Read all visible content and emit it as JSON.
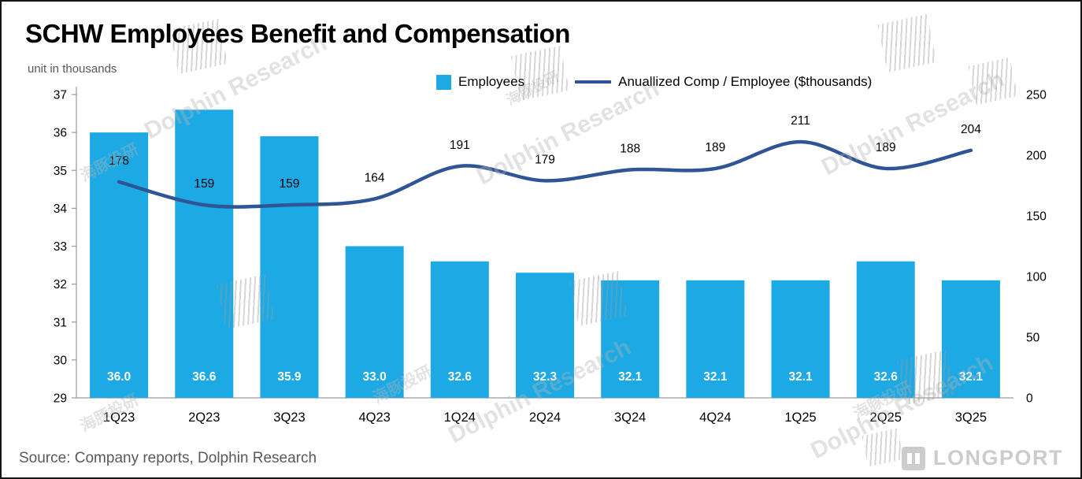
{
  "title": "SCHW Employees Benefit and Compensation",
  "subtitle": "unit in thousands",
  "source": "Source: Company reports, Dolphin Research",
  "logo": {
    "text": "LONGPORT"
  },
  "watermark": {
    "en": "Dolphin Research",
    "zh": "海豚投研"
  },
  "legend": [
    {
      "label": "Employees",
      "type": "bar",
      "color": "#1CA9E4"
    },
    {
      "label": "Anuallized Comp / Employee ($thousands)",
      "type": "line",
      "color": "#2F5597"
    }
  ],
  "chart_data": {
    "type": "bar+line",
    "title": "SCHW Employees Benefit and Compensation",
    "categories": [
      "1Q23",
      "2Q23",
      "3Q23",
      "4Q23",
      "1Q24",
      "2Q24",
      "3Q24",
      "4Q24",
      "1Q25",
      "2Q25",
      "3Q25"
    ],
    "series": [
      {
        "name": "Employees",
        "type": "bar",
        "axis": "left",
        "color": "#1CA9E4",
        "values": [
          36.0,
          36.6,
          35.9,
          33.0,
          32.6,
          32.3,
          32.1,
          32.1,
          32.1,
          32.6,
          32.1
        ]
      },
      {
        "name": "Anuallized Comp / Employee ($thousands)",
        "type": "line",
        "axis": "right",
        "color": "#2F5597",
        "values": [
          178,
          159,
          159,
          164,
          191,
          179,
          188,
          189,
          211,
          189,
          204
        ]
      }
    ],
    "left_axis": {
      "min": 29,
      "max": 37,
      "step": 1,
      "ticks": [
        29,
        30,
        31,
        32,
        33,
        34,
        35,
        36,
        37
      ]
    },
    "right_axis": {
      "min": 0,
      "max": 250,
      "step": 50,
      "ticks": [
        0,
        50,
        100,
        150,
        200,
        250
      ]
    },
    "grid": false,
    "legend_position": "top"
  }
}
